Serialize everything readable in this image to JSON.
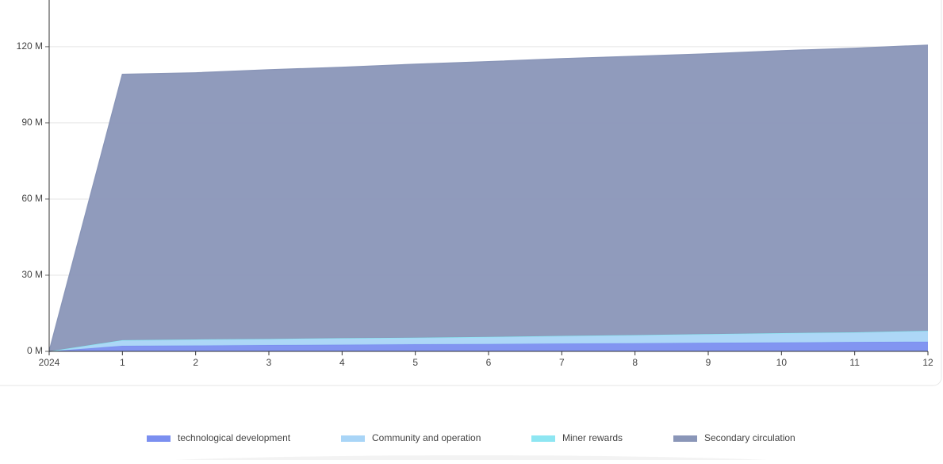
{
  "chart_data": {
    "type": "stacked-area",
    "categories": [
      "2024",
      "1",
      "2",
      "3",
      "4",
      "5",
      "6",
      "7",
      "8",
      "9",
      "10",
      "11",
      "12"
    ],
    "series": [
      {
        "name": "technological development",
        "color": "#7b8ff0",
        "values": [
          0,
          2.2,
          2.3,
          2.5,
          2.6,
          2.8,
          2.9,
          3.1,
          3.2,
          3.4,
          3.5,
          3.7,
          3.8
        ]
      },
      {
        "name": "Community and operation",
        "color": "#a9d5f7",
        "values": [
          0,
          2.2,
          2.4,
          2.4,
          2.6,
          2.6,
          2.8,
          3.0,
          3.2,
          3.4,
          3.7,
          3.8,
          4.3
        ]
      },
      {
        "name": "Miner rewards",
        "color": "#8ee6f2",
        "values": [
          0,
          0,
          0,
          0,
          0,
          0,
          0,
          0,
          0,
          0,
          0,
          0,
          0
        ]
      },
      {
        "name": "Secondary circulation",
        "color": "#8a96b8",
        "values": [
          0,
          104.7,
          105,
          106,
          106.7,
          107.7,
          108.4,
          109.2,
          109.8,
          110.4,
          111.2,
          111.9,
          112.5
        ]
      }
    ],
    "ylim": [
      0,
      138.4
    ],
    "yticks": [
      {
        "value": 0,
        "label": "0 M"
      },
      {
        "value": 30,
        "label": "30 M"
      },
      {
        "value": 60,
        "label": "60 M"
      },
      {
        "value": 90,
        "label": "90 M"
      },
      {
        "value": 120,
        "label": "120 M"
      }
    ],
    "grid": true,
    "legend": "bottom"
  }
}
